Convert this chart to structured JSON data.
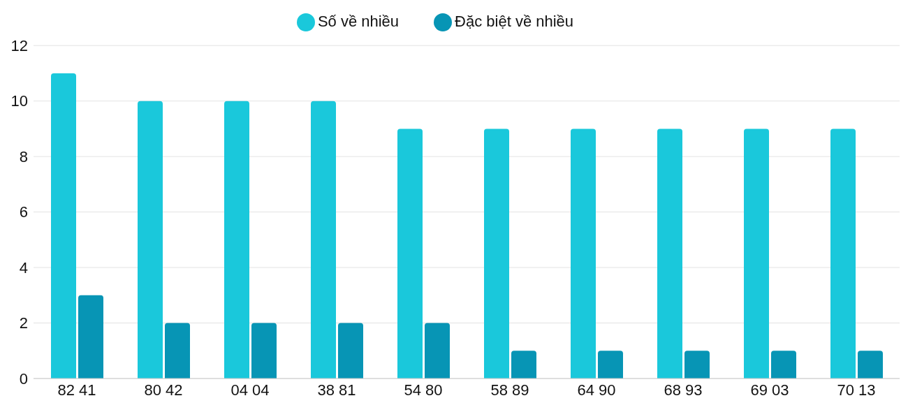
{
  "chart_data": {
    "type": "bar",
    "categories": [
      "82 41",
      "80 42",
      "04 04",
      "38 81",
      "54 80",
      "58 89",
      "64 90",
      "68 93",
      "69 03",
      "70 13"
    ],
    "series": [
      {
        "name": "Số về nhiều",
        "color": "#1ac8db",
        "values": [
          11,
          10,
          10,
          10,
          9,
          9,
          9,
          9,
          9,
          9
        ]
      },
      {
        "name": "Đặc biệt về nhiều",
        "color": "#0795b5",
        "values": [
          3,
          2,
          2,
          2,
          2,
          1,
          1,
          1,
          1,
          1
        ]
      }
    ],
    "ylim": [
      0,
      12
    ],
    "yticks": [
      0,
      2,
      4,
      6,
      8,
      10,
      12
    ],
    "grid": "y",
    "legend": "top"
  }
}
